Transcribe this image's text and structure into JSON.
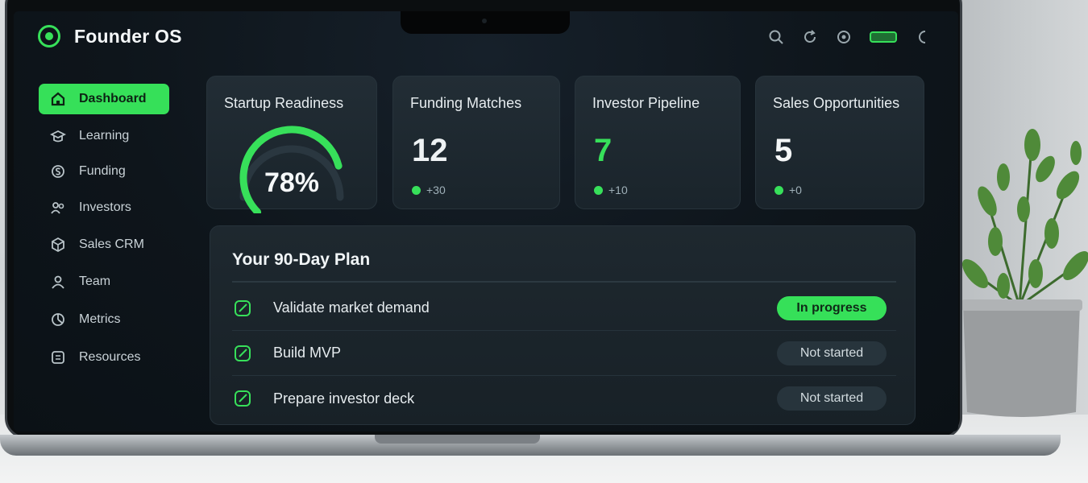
{
  "app": {
    "title": "Founder OS"
  },
  "topbar": {
    "icons": [
      "search-icon",
      "refresh-icon",
      "settings-icon",
      "battery-icon",
      "moon-icon"
    ]
  },
  "sidebar": {
    "items": [
      {
        "label": "Dashboard",
        "icon": "home-icon",
        "active": true
      },
      {
        "label": "Learning",
        "icon": "learning-icon"
      },
      {
        "label": "Funding",
        "icon": "funding-icon"
      },
      {
        "label": "Investors",
        "icon": "investors-icon"
      },
      {
        "label": "Sales CRM",
        "icon": "crm-icon"
      },
      {
        "label": "Team",
        "icon": "team-icon"
      },
      {
        "label": "Metrics",
        "icon": "metrics-icon"
      },
      {
        "label": "Resources",
        "icon": "resources-icon"
      }
    ]
  },
  "cards": {
    "readiness": {
      "title": "Startup Readiness",
      "value": "78%",
      "percent": 78
    },
    "funding": {
      "title": "Funding Matches",
      "value": "12",
      "sub": "+30"
    },
    "pipeline": {
      "title": "Investor Pipeline",
      "value": "7",
      "sub": "+10"
    },
    "sales": {
      "title": "Sales Opportunities",
      "value": "5",
      "sub": "+0"
    }
  },
  "plan": {
    "title": "Your 90-Day Plan",
    "rows": [
      {
        "label": "Validate market demand",
        "status": "In progress"
      },
      {
        "label": "Build MVP",
        "status": "Not started"
      },
      {
        "label": "Prepare investor deck",
        "status": "Not started"
      }
    ]
  },
  "colors": {
    "accent": "#37e05a",
    "panel": "#1e282f",
    "screen": "#0e151b"
  }
}
